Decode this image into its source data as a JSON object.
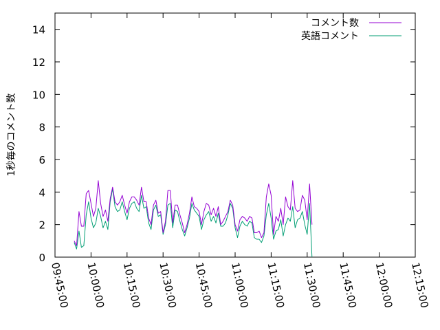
{
  "chart_data": {
    "type": "line",
    "ylabel": "1秒毎のコメント数",
    "xlabel": "",
    "title": "",
    "ylim": [
      0,
      15
    ],
    "yticks": [
      0,
      2,
      4,
      6,
      8,
      10,
      12,
      14
    ],
    "xlim": [
      "09:45:00",
      "12:15:00"
    ],
    "xticks": [
      "09:45:00",
      "10:00:00",
      "10:15:00",
      "10:30:00",
      "10:45:00",
      "11:00:00",
      "11:15:00",
      "11:30:00",
      "11:45:00",
      "12:00:00",
      "12:15:00"
    ],
    "legend_position": "top-right",
    "grid": false,
    "series": [
      {
        "name": "コメント数",
        "color": "#9400d3",
        "points": [
          [
            "09:53:00",
            1.0
          ],
          [
            "09:54:00",
            0.7
          ],
          [
            "09:55:00",
            2.8
          ],
          [
            "09:56:00",
            1.9
          ],
          [
            "09:57:00",
            1.9
          ],
          [
            "09:58:00",
            3.9
          ],
          [
            "09:59:00",
            4.1
          ],
          [
            "10:00:00",
            3.3
          ],
          [
            "10:01:00",
            2.5
          ],
          [
            "10:02:00",
            3.0
          ],
          [
            "10:03:00",
            4.7
          ],
          [
            "10:04:00",
            3.3
          ],
          [
            "10:05:00",
            2.5
          ],
          [
            "10:06:00",
            2.9
          ],
          [
            "10:07:00",
            2.2
          ],
          [
            "10:08:00",
            3.6
          ],
          [
            "10:09:00",
            4.3
          ],
          [
            "10:10:00",
            3.4
          ],
          [
            "10:11:00",
            3.2
          ],
          [
            "10:12:00",
            3.4
          ],
          [
            "10:13:00",
            3.8
          ],
          [
            "10:14:00",
            3.2
          ],
          [
            "10:15:00",
            2.7
          ],
          [
            "10:16:00",
            3.4
          ],
          [
            "10:17:00",
            3.7
          ],
          [
            "10:18:00",
            3.7
          ],
          [
            "10:19:00",
            3.5
          ],
          [
            "10:20:00",
            3.2
          ],
          [
            "10:21:00",
            4.3
          ],
          [
            "10:22:00",
            3.4
          ],
          [
            "10:23:00",
            3.4
          ],
          [
            "10:24:00",
            2.4
          ],
          [
            "10:25:00",
            2.0
          ],
          [
            "10:26:00",
            3.2
          ],
          [
            "10:27:00",
            3.5
          ],
          [
            "10:28:00",
            2.7
          ],
          [
            "10:29:00",
            2.8
          ],
          [
            "10:30:00",
            1.5
          ],
          [
            "10:31:00",
            2.2
          ],
          [
            "10:32:00",
            4.1
          ],
          [
            "10:33:00",
            4.1
          ],
          [
            "10:34:00",
            2.1
          ],
          [
            "10:35:00",
            3.2
          ],
          [
            "10:36:00",
            3.2
          ],
          [
            "10:37:00",
            2.6
          ],
          [
            "10:38:00",
            2.1
          ],
          [
            "10:39:00",
            1.5
          ],
          [
            "10:40:00",
            2.0
          ],
          [
            "10:41:00",
            2.7
          ],
          [
            "10:42:00",
            3.7
          ],
          [
            "10:43:00",
            3.1
          ],
          [
            "10:44:00",
            3.0
          ],
          [
            "10:45:00",
            2.8
          ],
          [
            "10:46:00",
            2.0
          ],
          [
            "10:47:00",
            2.8
          ],
          [
            "10:48:00",
            3.3
          ],
          [
            "10:49:00",
            3.2
          ],
          [
            "10:50:00",
            2.6
          ],
          [
            "10:51:00",
            3.0
          ],
          [
            "10:52:00",
            2.5
          ],
          [
            "10:53:00",
            3.1
          ],
          [
            "10:54:00",
            2.0
          ],
          [
            "10:55:00",
            2.2
          ],
          [
            "10:56:00",
            2.5
          ],
          [
            "10:57:00",
            2.8
          ],
          [
            "10:58:00",
            3.5
          ],
          [
            "10:59:00",
            3.2
          ],
          [
            "11:00:00",
            2.0
          ],
          [
            "11:01:00",
            1.6
          ],
          [
            "11:02:00",
            2.3
          ],
          [
            "11:03:00",
            2.5
          ],
          [
            "11:04:00",
            2.4
          ],
          [
            "11:05:00",
            2.2
          ],
          [
            "11:06:00",
            2.5
          ],
          [
            "11:07:00",
            2.4
          ],
          [
            "11:08:00",
            1.5
          ],
          [
            "11:09:00",
            1.5
          ],
          [
            "11:10:00",
            1.6
          ],
          [
            "11:11:00",
            1.2
          ],
          [
            "11:12:00",
            1.5
          ],
          [
            "11:13:00",
            3.7
          ],
          [
            "11:14:00",
            4.5
          ],
          [
            "11:15:00",
            3.8
          ],
          [
            "11:16:00",
            1.4
          ],
          [
            "11:17:00",
            2.5
          ],
          [
            "11:18:00",
            2.2
          ],
          [
            "11:19:00",
            3.0
          ],
          [
            "11:20:00",
            2.0
          ],
          [
            "11:21:00",
            3.7
          ],
          [
            "11:22:00",
            3.1
          ],
          [
            "11:23:00",
            2.9
          ],
          [
            "11:24:00",
            4.7
          ],
          [
            "11:25:00",
            3.0
          ],
          [
            "11:26:00",
            2.8
          ],
          [
            "11:27:00",
            2.9
          ],
          [
            "11:28:00",
            3.8
          ],
          [
            "11:29:00",
            3.5
          ],
          [
            "11:30:00",
            2.3
          ],
          [
            "11:31:00",
            4.5
          ],
          [
            "11:32:00",
            2.0
          ]
        ]
      },
      {
        "name": "英語コメント",
        "color": "#009e73",
        "points": [
          [
            "09:53:00",
            0.9
          ],
          [
            "09:54:00",
            0.5
          ],
          [
            "09:55:00",
            1.6
          ],
          [
            "09:56:00",
            0.6
          ],
          [
            "09:57:00",
            0.7
          ],
          [
            "09:58:00",
            2.6
          ],
          [
            "09:59:00",
            3.4
          ],
          [
            "10:00:00",
            2.4
          ],
          [
            "10:01:00",
            1.8
          ],
          [
            "10:02:00",
            2.1
          ],
          [
            "10:03:00",
            3.0
          ],
          [
            "10:04:00",
            2.5
          ],
          [
            "10:05:00",
            1.8
          ],
          [
            "10:06:00",
            2.2
          ],
          [
            "10:07:00",
            1.7
          ],
          [
            "10:08:00",
            3.4
          ],
          [
            "10:09:00",
            4.2
          ],
          [
            "10:10:00",
            3.1
          ],
          [
            "10:11:00",
            2.8
          ],
          [
            "10:12:00",
            2.9
          ],
          [
            "10:13:00",
            3.4
          ],
          [
            "10:14:00",
            2.8
          ],
          [
            "10:15:00",
            2.3
          ],
          [
            "10:16:00",
            3.0
          ],
          [
            "10:17:00",
            3.3
          ],
          [
            "10:18:00",
            3.4
          ],
          [
            "10:19:00",
            3.0
          ],
          [
            "10:20:00",
            2.8
          ],
          [
            "10:21:00",
            3.8
          ],
          [
            "10:22:00",
            3.0
          ],
          [
            "10:23:00",
            3.1
          ],
          [
            "10:24:00",
            2.1
          ],
          [
            "10:25:00",
            1.7
          ],
          [
            "10:26:00",
            2.9
          ],
          [
            "10:27:00",
            3.2
          ],
          [
            "10:28:00",
            2.5
          ],
          [
            "10:29:00",
            2.6
          ],
          [
            "10:30:00",
            1.4
          ],
          [
            "10:31:00",
            2.0
          ],
          [
            "10:32:00",
            3.2
          ],
          [
            "10:33:00",
            3.3
          ],
          [
            "10:34:00",
            1.8
          ],
          [
            "10:35:00",
            2.9
          ],
          [
            "10:36:00",
            2.8
          ],
          [
            "10:37:00",
            2.2
          ],
          [
            "10:38:00",
            1.7
          ],
          [
            "10:39:00",
            1.3
          ],
          [
            "10:40:00",
            1.8
          ],
          [
            "10:41:00",
            2.4
          ],
          [
            "10:42:00",
            3.3
          ],
          [
            "10:43:00",
            2.9
          ],
          [
            "10:44:00",
            2.7
          ],
          [
            "10:45:00",
            2.5
          ],
          [
            "10:46:00",
            1.7
          ],
          [
            "10:47:00",
            2.3
          ],
          [
            "10:48:00",
            2.6
          ],
          [
            "10:49:00",
            2.8
          ],
          [
            "10:50:00",
            2.2
          ],
          [
            "10:51:00",
            2.5
          ],
          [
            "10:52:00",
            2.1
          ],
          [
            "10:53:00",
            2.7
          ],
          [
            "10:54:00",
            1.9
          ],
          [
            "10:55:00",
            1.9
          ],
          [
            "10:56:00",
            2.1
          ],
          [
            "10:57:00",
            2.6
          ],
          [
            "10:58:00",
            3.3
          ],
          [
            "10:59:00",
            3.0
          ],
          [
            "11:00:00",
            1.8
          ],
          [
            "11:01:00",
            1.2
          ],
          [
            "11:02:00",
            1.9
          ],
          [
            "11:03:00",
            2.2
          ],
          [
            "11:04:00",
            2.0
          ],
          [
            "11:05:00",
            1.9
          ],
          [
            "11:06:00",
            2.2
          ],
          [
            "11:07:00",
            2.1
          ],
          [
            "11:08:00",
            1.2
          ],
          [
            "11:09:00",
            1.1
          ],
          [
            "11:10:00",
            1.1
          ],
          [
            "11:11:00",
            0.9
          ],
          [
            "11:12:00",
            1.3
          ],
          [
            "11:13:00",
            2.6
          ],
          [
            "11:14:00",
            3.3
          ],
          [
            "11:15:00",
            2.4
          ],
          [
            "11:16:00",
            1.1
          ],
          [
            "11:17:00",
            1.6
          ],
          [
            "11:18:00",
            1.7
          ],
          [
            "11:19:00",
            2.3
          ],
          [
            "11:20:00",
            1.3
          ],
          [
            "11:21:00",
            2.0
          ],
          [
            "11:22:00",
            2.4
          ],
          [
            "11:23:00",
            2.2
          ],
          [
            "11:24:00",
            3.1
          ],
          [
            "11:25:00",
            1.8
          ],
          [
            "11:26:00",
            2.3
          ],
          [
            "11:27:00",
            2.4
          ],
          [
            "11:28:00",
            2.8
          ],
          [
            "11:29:00",
            2.0
          ],
          [
            "11:30:00",
            1.4
          ],
          [
            "11:31:00",
            3.3
          ],
          [
            "11:32:00",
            0.0
          ]
        ]
      }
    ]
  }
}
